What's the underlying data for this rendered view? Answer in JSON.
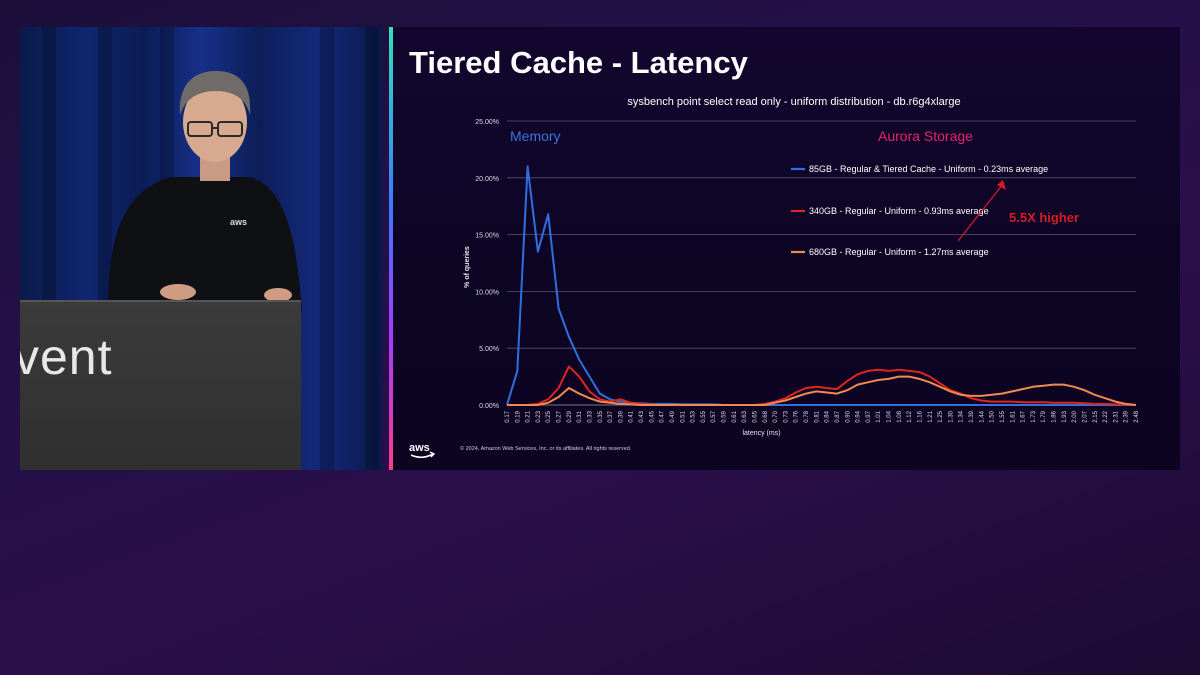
{
  "presenter_video": {
    "podium_text": "vent",
    "shirt_logo": "aws"
  },
  "slide": {
    "title": "Tiered Cache - Latency",
    "aws_logo": "aws",
    "copyright": "© 2024, Amazon Web Services, Inc. or its affiliates. All rights reserved."
  },
  "chart_data": {
    "type": "line",
    "title": "sysbench point select read only - uniform distribution - db.r6g4xlarge",
    "xlabel": "latency (ms)",
    "ylabel": "% of queries",
    "ylim": [
      0,
      25
    ],
    "yticks": [
      "0.00%",
      "5.00%",
      "10.00%",
      "15.00%",
      "20.00%",
      "25.00%"
    ],
    "grid": "horizontal",
    "annotations": {
      "memory": "Memory",
      "aurora": "Aurora Storage",
      "higher": "5.5X higher"
    },
    "colors": {
      "memory": "#3b74e8",
      "aurora": "#e8246c",
      "higher": "#d81b2a"
    },
    "categories": [
      "0.17",
      "0.19",
      "0.21",
      "0.23",
      "0.25",
      "0.27",
      "0.29",
      "0.31",
      "0.33",
      "0.35",
      "0.37",
      "0.39",
      "0.41",
      "0.43",
      "0.45",
      "0.47",
      "0.49",
      "0.51",
      "0.53",
      "0.55",
      "0.57",
      "0.59",
      "0.61",
      "0.63",
      "0.65",
      "0.68",
      "0.70",
      "0.73",
      "0.76",
      "0.78",
      "0.81",
      "0.84",
      "0.87",
      "0.90",
      "0.94",
      "0.97",
      "1.01",
      "1.04",
      "1.08",
      "1.12",
      "1.16",
      "1.21",
      "1.25",
      "1.30",
      "1.34",
      "1.39",
      "1.44",
      "1.50",
      "1.55",
      "1.61",
      "1.67",
      "1.73",
      "1.79",
      "1.86",
      "1.93",
      "2.00",
      "2.07",
      "2.15",
      "2.22",
      "2.31",
      "2.39",
      "2.48"
    ],
    "series": [
      {
        "name": "85GB - Regular & Tiered Cache - Uniform  - 0.23ms average",
        "color": "#2f6fe0",
        "values": [
          0,
          3,
          21,
          13.5,
          16.8,
          8.5,
          6,
          4,
          2.5,
          1,
          0.5,
          0.3,
          0.2,
          0.15,
          0.1,
          0.1,
          0.1,
          0.05,
          0.05,
          0.05,
          0.05,
          0,
          0,
          0,
          0,
          0,
          0,
          0,
          0,
          0,
          0,
          0,
          0,
          0,
          0,
          0,
          0,
          0,
          0,
          0,
          0,
          0,
          0,
          0,
          0,
          0,
          0,
          0,
          0,
          0,
          0,
          0,
          0,
          0,
          0,
          0,
          0,
          0,
          0,
          0,
          0,
          0
        ]
      },
      {
        "name": "340GB - Regular - Uniform - 0.93ms average",
        "color": "#e0241f",
        "values": [
          0,
          0,
          0,
          0.1,
          0.5,
          1.5,
          3.4,
          2.5,
          1.2,
          0.5,
          0.3,
          0.5,
          0.2,
          0.1,
          0.05,
          0,
          0,
          0,
          0,
          0,
          0,
          0,
          0,
          0,
          0,
          0.1,
          0.3,
          0.6,
          1.1,
          1.5,
          1.6,
          1.5,
          1.4,
          2.1,
          2.7,
          3.0,
          3.1,
          3.0,
          3.1,
          3.0,
          2.9,
          2.5,
          1.9,
          1.3,
          1.0,
          0.6,
          0.4,
          0.3,
          0.3,
          0.3,
          0.25,
          0.25,
          0.25,
          0.2,
          0.2,
          0.2,
          0.15,
          0.1,
          0.1,
          0.05,
          0.05,
          0
        ]
      },
      {
        "name": "680GB - Regular - Uniform - 1.27ms average",
        "color": "#f08a4e",
        "values": [
          0,
          0,
          0,
          0,
          0.2,
          0.7,
          1.5,
          1.0,
          0.6,
          0.3,
          0.2,
          0.1,
          0.05,
          0,
          0,
          0,
          0,
          0,
          0,
          0,
          0,
          0,
          0,
          0,
          0,
          0,
          0.2,
          0.4,
          0.7,
          1.0,
          1.2,
          1.1,
          1.0,
          1.3,
          1.8,
          2.0,
          2.2,
          2.3,
          2.5,
          2.5,
          2.3,
          2.0,
          1.6,
          1.2,
          0.9,
          0.8,
          0.8,
          0.9,
          1.0,
          1.2,
          1.4,
          1.6,
          1.7,
          1.8,
          1.8,
          1.6,
          1.3,
          0.9,
          0.6,
          0.3,
          0.1,
          0
        ]
      }
    ]
  }
}
